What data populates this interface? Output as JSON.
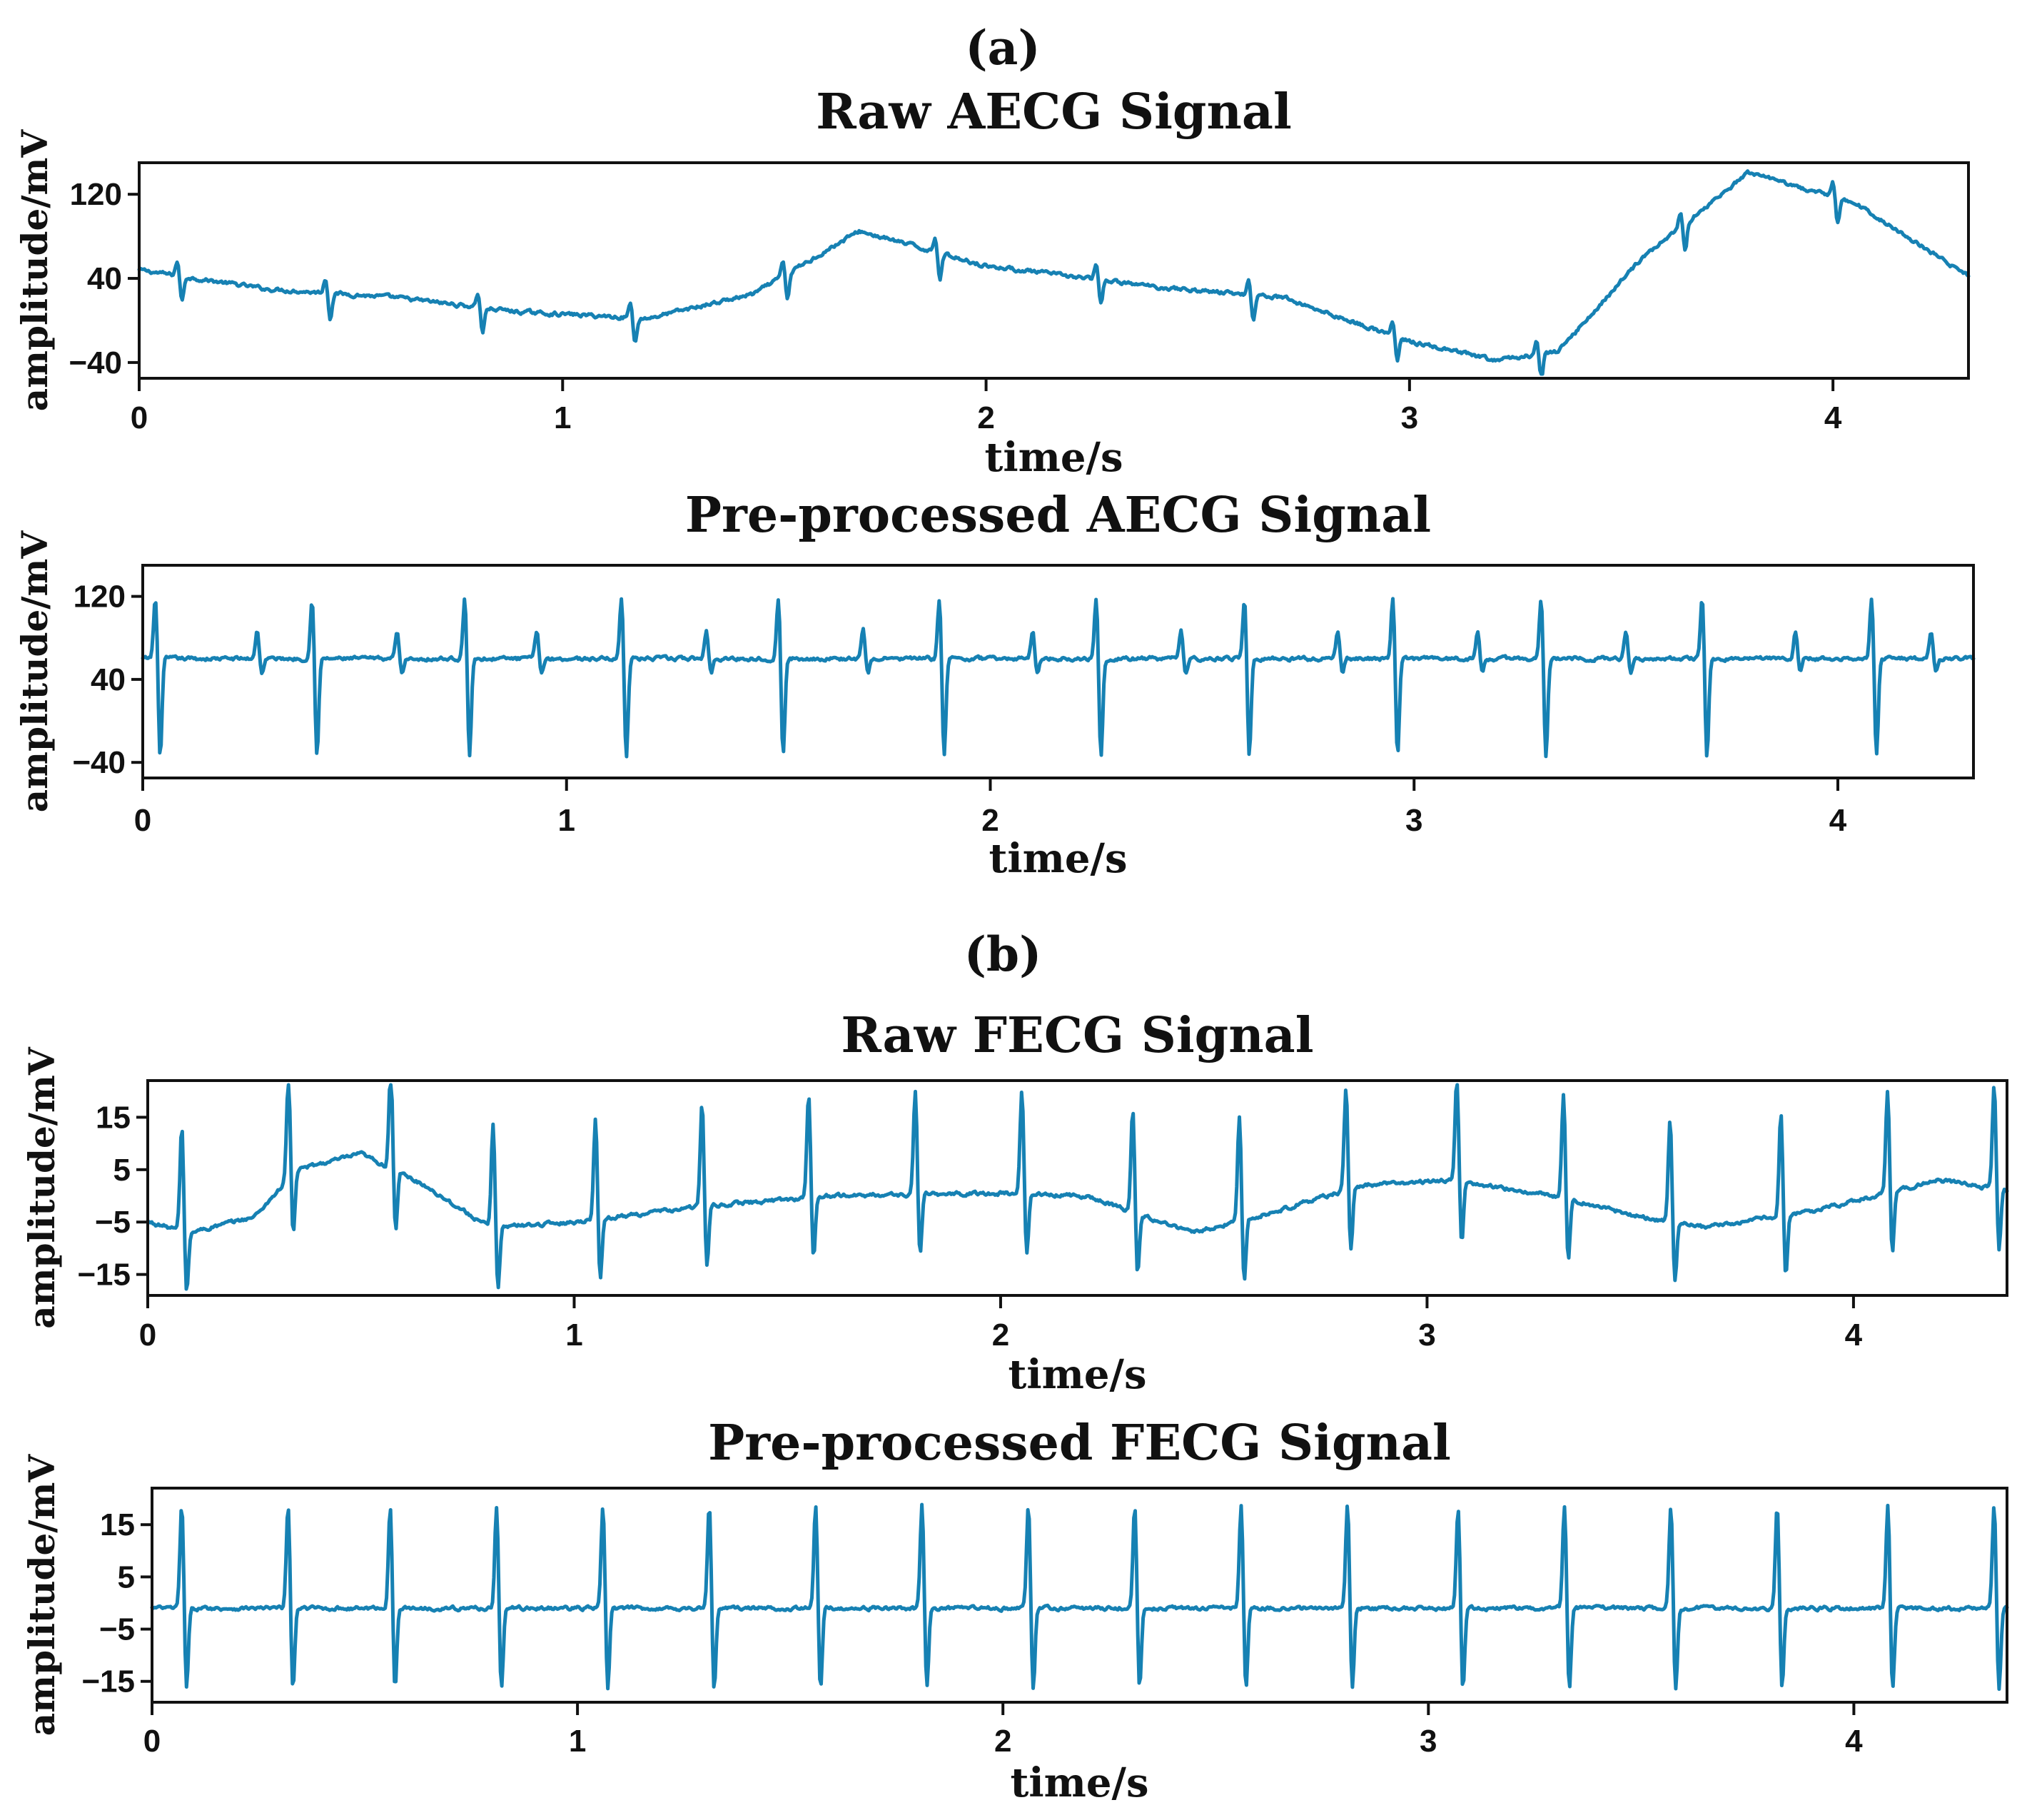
{
  "panels": [
    {
      "label": "(a)"
    },
    {
      "label": "(b)"
    }
  ],
  "chart_data": [
    {
      "type": "line",
      "title": "Raw AECG Signal",
      "xlabel": "time/s",
      "ylabel": "amplitude/mV",
      "xlim": [
        0,
        4.32
      ],
      "ylim": [
        -55,
        150
      ],
      "xticks": [
        0,
        1,
        2,
        3,
        4
      ],
      "yticks": [
        120,
        40,
        -40
      ],
      "series": [
        {
          "name": "Raw AECG",
          "color": "#1681b3",
          "baseline": [
            [
              0,
              48
            ],
            [
              0.3,
              30
            ],
            [
              0.6,
              22
            ],
            [
              0.9,
              8
            ],
            [
              1.2,
              2
            ],
            [
              1.45,
              25
            ],
            [
              1.7,
              85
            ],
            [
              2.0,
              52
            ],
            [
              2.4,
              32
            ],
            [
              2.7,
              22
            ],
            [
              3.0,
              -20
            ],
            [
              3.2,
              -38
            ],
            [
              3.35,
              -30
            ],
            [
              3.55,
              60
            ],
            [
              3.8,
              140
            ],
            [
              4.05,
              112
            ],
            [
              4.32,
              42
            ]
          ],
          "beats": [
            0.09,
            0.44,
            0.8,
            1.16,
            1.52,
            1.88,
            2.26,
            2.62,
            2.96,
            3.3,
            3.64,
            4.0
          ],
          "beat_amplitude": {
            "up": 14,
            "down": -24
          }
        }
      ]
    },
    {
      "type": "line",
      "title": "Pre-processed AECG Signal",
      "xlabel": "time/s",
      "ylabel": "amplitude/mV",
      "xlim": [
        0,
        4.32
      ],
      "ylim": [
        -55,
        150
      ],
      "xticks": [
        0,
        1,
        2,
        3,
        4
      ],
      "yticks": [
        120,
        40,
        -40
      ],
      "series": [
        {
          "name": "Pre-processed AECG",
          "color": "#1681b3",
          "baseline": [
            [
              0,
              60
            ],
            [
              4.32,
              60
            ]
          ],
          "maternal_beats": [
            0.03,
            0.4,
            0.76,
            1.13,
            1.5,
            1.88,
            2.25,
            2.6,
            2.95,
            3.3,
            3.68,
            4.08
          ],
          "fetal_beats": [
            0.27,
            0.6,
            0.93,
            1.33,
            1.7,
            2.1,
            2.45,
            2.82,
            3.15,
            3.5,
            3.9,
            4.22
          ],
          "beat_amplitude": {
            "up": 60,
            "down": -95
          }
        }
      ]
    },
    {
      "type": "line",
      "title": "Raw FECG Signal",
      "xlabel": "time/s",
      "ylabel": "amplitude/mV",
      "xlim": [
        0,
        4.36
      ],
      "ylim": [
        -19,
        22
      ],
      "xticks": [
        0,
        1,
        2,
        3,
        4
      ],
      "yticks": [
        15,
        5,
        -5,
        -15
      ],
      "series": [
        {
          "name": "Raw FECG",
          "color": "#1681b3",
          "baseline": [
            [
              0,
              -5
            ],
            [
              0.1,
              -7
            ],
            [
              0.25,
              -4
            ],
            [
              0.35,
              5
            ],
            [
              0.5,
              8
            ],
            [
              0.65,
              2
            ],
            [
              0.8,
              -6
            ],
            [
              1.0,
              -5
            ],
            [
              1.3,
              -2
            ],
            [
              1.6,
              0
            ],
            [
              2.0,
              0.5
            ],
            [
              2.2,
              0
            ],
            [
              2.45,
              -7
            ],
            [
              2.6,
              -4
            ],
            [
              2.85,
              2
            ],
            [
              3.05,
              3
            ],
            [
              3.3,
              0
            ],
            [
              3.5,
              -4
            ],
            [
              3.65,
              -6
            ],
            [
              3.9,
              -3
            ],
            [
              4.2,
              3
            ],
            [
              4.36,
              1
            ]
          ],
          "beats": [
            0.08,
            0.33,
            0.57,
            0.81,
            1.05,
            1.3,
            1.55,
            1.8,
            2.05,
            2.31,
            2.56,
            2.81,
            3.07,
            3.32,
            3.57,
            3.83,
            4.08,
            4.33
          ],
          "beat_amplitude": {
            "up": 20,
            "down": -12
          }
        }
      ]
    },
    {
      "type": "line",
      "title": "Pre-processed FECG Signal",
      "xlabel": "time/s",
      "ylabel": "amplitude/mV",
      "xlim": [
        0,
        4.36
      ],
      "ylim": [
        -19,
        22
      ],
      "xticks": [
        0,
        1,
        2,
        3,
        4
      ],
      "yticks": [
        15,
        5,
        -5,
        -15
      ],
      "series": [
        {
          "name": "Pre-processed FECG",
          "color": "#1681b3",
          "baseline": [
            [
              0,
              -1
            ],
            [
              4.36,
              -1
            ]
          ],
          "beats": [
            0.07,
            0.32,
            0.56,
            0.81,
            1.06,
            1.31,
            1.56,
            1.81,
            2.06,
            2.31,
            2.56,
            2.81,
            3.07,
            3.32,
            3.57,
            3.82,
            4.08,
            4.33
          ],
          "beat_amplitude": {
            "up": 20,
            "down": -16
          }
        }
      ]
    }
  ]
}
